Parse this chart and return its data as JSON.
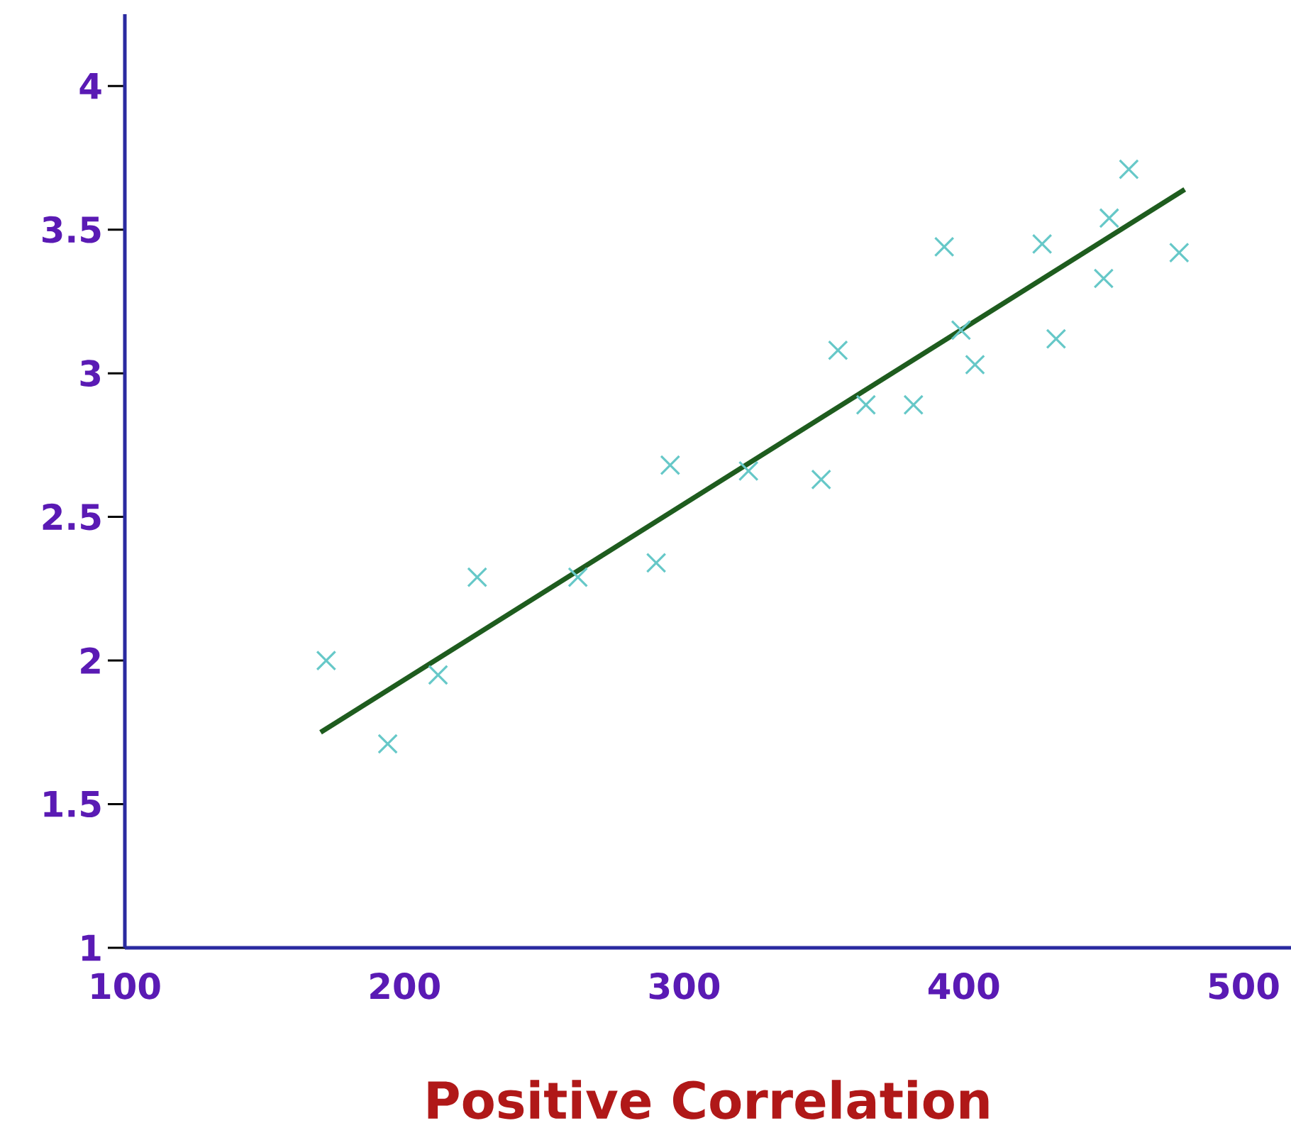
{
  "chart_data": {
    "type": "scatter",
    "xlabel": "Positive Correlation",
    "xlim": [
      100,
      517
    ],
    "ylim": [
      1,
      4.25
    ],
    "xticks": [
      100,
      200,
      300,
      400,
      500
    ],
    "yticks": [
      1,
      1.5,
      2,
      2.5,
      3,
      3.5,
      4
    ],
    "grid": false,
    "marker": "cross",
    "series": [
      {
        "color": "#66c8c8",
        "x": [
          172,
          194,
          212,
          226,
          262,
          290,
          295,
          323,
          349,
          355,
          365,
          382,
          393,
          399,
          404,
          428,
          433,
          450,
          452,
          459,
          477
        ],
        "values": [
          2.0,
          1.71,
          1.95,
          2.29,
          2.29,
          2.34,
          2.68,
          2.66,
          2.63,
          3.08,
          2.89,
          2.89,
          3.44,
          3.15,
          3.03,
          3.45,
          3.12,
          3.33,
          3.54,
          3.71,
          3.42
        ]
      },
      {
        "type": "line",
        "color": "#1e5c1e",
        "marker": "none",
        "x": [
          170,
          479
        ],
        "values": [
          1.75,
          3.64
        ]
      }
    ]
  }
}
